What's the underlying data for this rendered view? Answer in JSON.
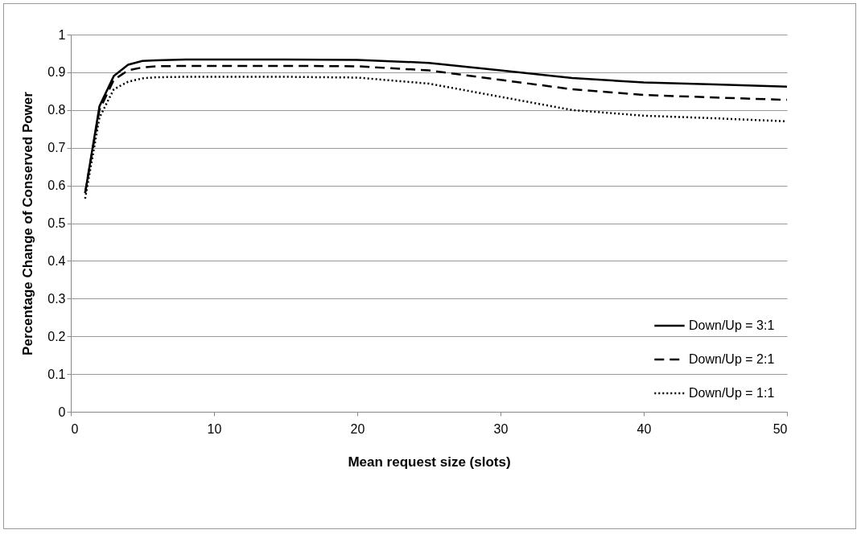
{
  "chart_data": {
    "type": "line",
    "xlabel": "Mean request size (slots)",
    "ylabel": "Percentage Change of Conserved Power",
    "x": [
      1,
      2,
      3,
      4,
      5,
      6,
      8,
      10,
      15,
      20,
      25,
      30,
      35,
      40,
      45,
      50
    ],
    "series": [
      {
        "name": "Down/Up = 3:1",
        "color": "#000000",
        "line_style": "solid",
        "values": [
          0.58,
          0.81,
          0.89,
          0.92,
          0.93,
          0.932,
          0.934,
          0.934,
          0.934,
          0.933,
          0.925,
          0.905,
          0.885,
          0.873,
          0.868,
          0.862
        ]
      },
      {
        "name": "Down/Up = 2:1",
        "color": "#000000",
        "line_style": "dashed",
        "values": [
          0.58,
          0.8,
          0.88,
          0.905,
          0.913,
          0.916,
          0.917,
          0.917,
          0.917,
          0.916,
          0.905,
          0.88,
          0.855,
          0.84,
          0.833,
          0.827
        ]
      },
      {
        "name": "Down/Up = 1:1",
        "color": "#000000",
        "line_style": "dotted",
        "values": [
          0.565,
          0.78,
          0.855,
          0.875,
          0.884,
          0.887,
          0.888,
          0.888,
          0.888,
          0.886,
          0.87,
          0.835,
          0.8,
          0.785,
          0.778,
          0.77
        ]
      }
    ],
    "xlim": [
      0,
      50
    ],
    "xticks": [
      0,
      10,
      20,
      30,
      40,
      50
    ],
    "ylim": [
      0,
      1
    ],
    "yticks": [
      0,
      0.1,
      0.2,
      0.3,
      0.4,
      0.5,
      0.6,
      0.7,
      0.8,
      0.9,
      1
    ],
    "grid": "y",
    "legend": "bottom right",
    "marker": "none"
  }
}
